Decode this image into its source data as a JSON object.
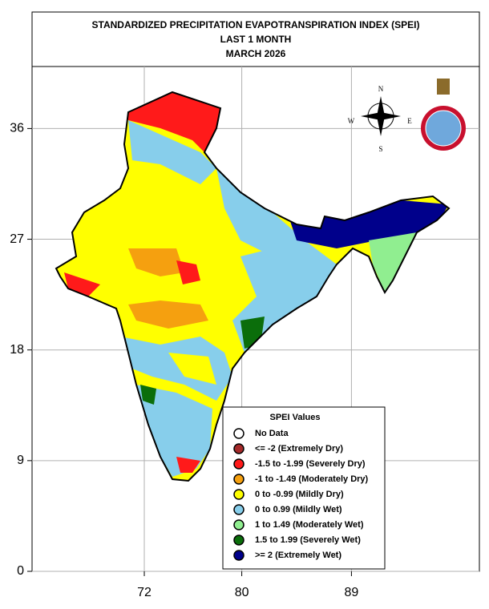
{
  "header": {
    "lines": [
      "STANDARDIZED PRECIPITATION EVAPOTRANSPIRATION INDEX (SPEI)",
      "LAST 1 MONTH",
      "MARCH 2026"
    ]
  },
  "map": {
    "lat_ticks": [
      36,
      27,
      18,
      9,
      0
    ],
    "lon_ticks": [
      72,
      80,
      89
    ],
    "grid": true
  },
  "compass": {
    "north": "N",
    "east": "E",
    "south": "S",
    "west": "W"
  },
  "legend": {
    "title": "SPEI Values",
    "items": [
      {
        "label": "No Data",
        "color": "#ffffff"
      },
      {
        "label": "<= -2 (Extremely Dry)",
        "color": "#a52a2a"
      },
      {
        "label": "-1.5 to -1.99 (Severely Dry)",
        "color": "#ff1a1a"
      },
      {
        "label": "-1 to -1.49 (Moderately Dry)",
        "color": "#f5a00f"
      },
      {
        "label": "0 to -0.99 (Mildly  Dry)",
        "color": "#ffff00"
      },
      {
        "label": "0 to 0.99 (Mildly  Wet)",
        "color": "#87ceeb"
      },
      {
        "label": "1 to 1.49 (Moderately Wet)",
        "color": "#90ee90"
      },
      {
        "label": "1.5 to 1.99 (Severely Wet)",
        "color": "#0b6e0b"
      },
      {
        "label": ">= 2 (Extremely Wet)",
        "color": "#00008b"
      }
    ]
  }
}
